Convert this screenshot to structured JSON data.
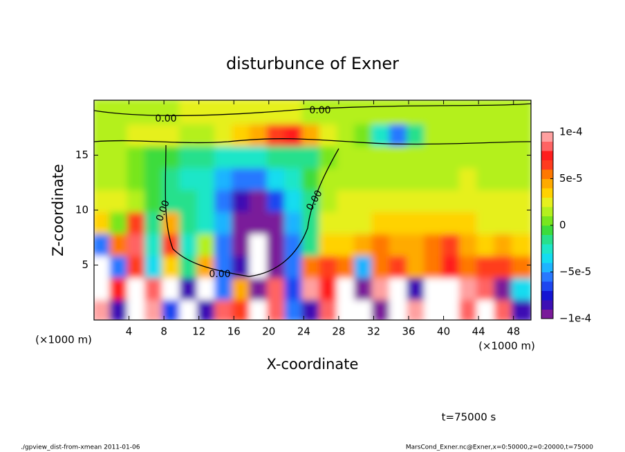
{
  "chart_data": {
    "type": "contour",
    "title": "disturbunce of Exner",
    "x_label": "X-coordinate",
    "y_label": "Z-coordinate",
    "x_unit_label": "(×1000 m)",
    "annotation": "t=75000 s",
    "footer_left": "./gpview_dist-from-xmean  2011-01-06",
    "footer_right": "MarsCond_Exner.nc@Exner,x=0:50000,z=0:20000,t=75000",
    "contour_labels": [
      "0.00",
      "0.00",
      "0.00",
      "0.00",
      "0.00"
    ],
    "xlim": [
      0,
      50
    ],
    "xticks": [
      4,
      8,
      12,
      16,
      20,
      24,
      28,
      32,
      36,
      40,
      44,
      48
    ],
    "ylim": [
      0,
      20
    ],
    "yticks": [
      5,
      10,
      15
    ],
    "clim": [
      -0.0001,
      0.0001
    ],
    "cticks": [
      {
        "value": 0.0001,
        "label": "1e-4"
      },
      {
        "value": 5e-05,
        "label": "5e-5"
      },
      {
        "value": 0,
        "label": "0"
      },
      {
        "value": -5e-05,
        "label": "−5e-5"
      },
      {
        "value": -0.0001,
        "label": "−1e-4"
      }
    ],
    "colors": [
      "#7a1a9a",
      "#3c0fb4",
      "#1414d2",
      "#1e46f0",
      "#2878ff",
      "#1eb4ff",
      "#14dcf0",
      "#1ee6c8",
      "#28e08c",
      "#3cdc3c",
      "#78e61e",
      "#b4f01e",
      "#e6f01e",
      "#ffd200",
      "#ffaa00",
      "#ff7800",
      "#ff3c1e",
      "#ff1e1e",
      "#ff6464",
      "#ffa0a0"
    ],
    "out_of_range_color": "#ffffff",
    "x": [
      1,
      3,
      5,
      7,
      9,
      11,
      13,
      15,
      17,
      19,
      21,
      23,
      25,
      27,
      29,
      31,
      33,
      35,
      37,
      39,
      41,
      43,
      45,
      47,
      49
    ],
    "y": [
      1,
      3,
      5,
      7,
      9,
      11,
      13,
      15,
      17,
      19
    ],
    "z": [
      [
        9e-05,
        -8e-05,
        0.00012,
        9e-05,
        -7e-05,
        0.00012,
        -8e-05,
        8e-05,
        6e-05,
        -0.00012,
        8e-05,
        -6e-05,
        -8e-05,
        8e-05,
        -0.00012,
        0.00012,
        -9e-05,
        -0.00012,
        9e-05,
        0.00012,
        -0.00012,
        8e-05,
        0.00012,
        8e-05,
        -8e-05
      ],
      [
        -0.00012,
        7e-05,
        -0.00012,
        8e-05,
        0.00012,
        -8e-05,
        0.00012,
        -6e-05,
        4e-05,
        -9e-05,
        8e-05,
        -7e-05,
        9e-05,
        7e-05,
        0.00012,
        -0.0001,
        9e-05,
        0.00012,
        -8e-05,
        0.00012,
        -0.00012,
        0.0001,
        8e-05,
        -0.0001,
        -4e-05
      ],
      [
        -0.00012,
        -6e-05,
        6e-05,
        -4e-05,
        3e-05,
        -2e-05,
        4e-05,
        -6e-05,
        -8e-05,
        -0.00012,
        -9e-05,
        -6e-05,
        5e-05,
        6e-05,
        5e-05,
        -5e-05,
        5e-05,
        6e-05,
        4e-05,
        5e-05,
        7e-05,
        5e-05,
        6e-05,
        6e-05,
        5e-05
      ],
      [
        -6e-05,
        5e-05,
        8e-05,
        -3e-05,
        6e-05,
        -3e-05,
        1e-05,
        -6e-05,
        -0.0001,
        -0.00012,
        -0.0001,
        -6e-05,
        -2e-05,
        3e-05,
        3e-05,
        4e-05,
        5e-05,
        4e-05,
        4e-05,
        5e-05,
        6e-05,
        4e-05,
        3e-05,
        4e-05,
        3e-05
      ],
      [
        3e-05,
        0,
        6e-05,
        -2e-05,
        4e-05,
        -2e-05,
        -3e-05,
        -5e-05,
        -9e-05,
        -0.0001,
        -9e-05,
        -5e-05,
        -2e-05,
        2e-05,
        2e-05,
        2e-05,
        3e-05,
        3e-05,
        3e-05,
        3e-05,
        3e-05,
        3e-05,
        2e-05,
        2e-05,
        2e-05
      ],
      [
        2e-05,
        2e-05,
        1e-05,
        -1e-05,
        -2e-05,
        -2e-05,
        -3e-05,
        -6e-05,
        -8e-05,
        -9e-05,
        -7e-05,
        -4e-05,
        -2e-05,
        1e-05,
        2e-05,
        2e-05,
        2e-05,
        2e-05,
        2e-05,
        2e-05,
        2e-05,
        2e-05,
        2e-05,
        2e-05,
        2e-05
      ],
      [
        1e-05,
        1e-05,
        0,
        -1e-05,
        -2e-05,
        -3e-05,
        -3e-05,
        -5e-05,
        -6e-05,
        -6e-05,
        -4e-05,
        -3e-05,
        -1e-05,
        1e-05,
        1e-05,
        1e-05,
        1e-05,
        1e-05,
        1e-05,
        1e-05,
        1e-05,
        2e-05,
        1e-05,
        1e-05,
        1e-05
      ],
      [
        1e-05,
        1e-05,
        0,
        -1e-05,
        -1e-05,
        -2e-05,
        -2e-05,
        -3e-05,
        -3e-05,
        -3e-05,
        -2e-05,
        -2e-05,
        -2e-05,
        0,
        1e-05,
        1e-05,
        1e-05,
        1e-05,
        1e-05,
        1e-05,
        1e-05,
        1e-05,
        1e-05,
        1e-05,
        1e-05
      ],
      [
        1e-05,
        1e-05,
        2e-05,
        2e-05,
        2e-05,
        1e-05,
        1e-05,
        2e-05,
        3e-05,
        4e-05,
        6e-05,
        7e-05,
        4e-05,
        2e-05,
        1e-05,
        0,
        -3e-05,
        -6e-05,
        -2e-05,
        1e-05,
        1e-05,
        1e-05,
        1e-05,
        1e-05,
        1e-05
      ],
      [
        1e-05,
        1e-05,
        1e-05,
        1e-05,
        1e-05,
        2e-05,
        2e-05,
        2e-05,
        2e-05,
        2e-05,
        2e-05,
        2e-05,
        1e-05,
        1e-05,
        1e-05,
        1e-05,
        1e-05,
        1e-05,
        1e-05,
        1e-05,
        1e-05,
        1e-05,
        1e-05,
        1e-05,
        1e-05
      ]
    ]
  }
}
